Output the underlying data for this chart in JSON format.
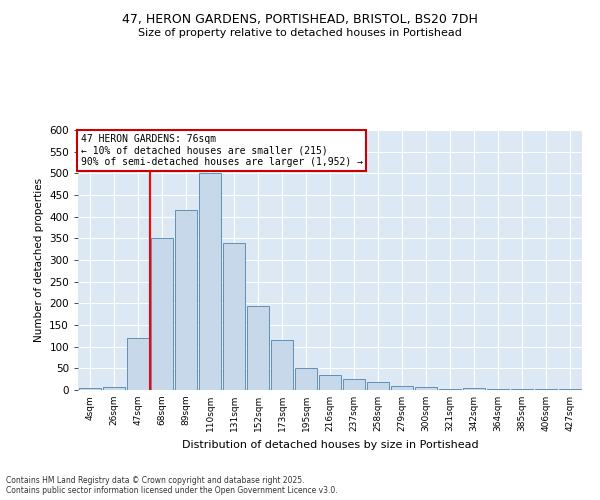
{
  "title_line1": "47, HERON GARDENS, PORTISHEAD, BRISTOL, BS20 7DH",
  "title_line2": "Size of property relative to detached houses in Portishead",
  "xlabel": "Distribution of detached houses by size in Portishead",
  "ylabel": "Number of detached properties",
  "categories": [
    "4sqm",
    "26sqm",
    "47sqm",
    "68sqm",
    "89sqm",
    "110sqm",
    "131sqm",
    "152sqm",
    "173sqm",
    "195sqm",
    "216sqm",
    "237sqm",
    "258sqm",
    "279sqm",
    "300sqm",
    "321sqm",
    "342sqm",
    "364sqm",
    "385sqm",
    "406sqm",
    "427sqm"
  ],
  "values": [
    5,
    8,
    120,
    350,
    415,
    500,
    340,
    195,
    115,
    50,
    35,
    25,
    18,
    10,
    8,
    3,
    5,
    3,
    3,
    3,
    3
  ],
  "bar_color": "#c8d8eb",
  "bar_edge_color": "#6090b8",
  "bg_color": "#dce8f4",
  "grid_color": "#ffffff",
  "red_line_x": 2.5,
  "ylim": [
    0,
    600
  ],
  "yticks": [
    0,
    50,
    100,
    150,
    200,
    250,
    300,
    350,
    400,
    450,
    500,
    550,
    600
  ],
  "annotation_box_text": "47 HERON GARDENS: 76sqm\n← 10% of detached houses are smaller (215)\n90% of semi-detached houses are larger (1,952) →",
  "annotation_box_color": "#ffffff",
  "annotation_box_edge_color": "#cc0000",
  "footer_text": "Contains HM Land Registry data © Crown copyright and database right 2025.\nContains public sector information licensed under the Open Government Licence v3.0.",
  "fig_bg_color": "#ffffff",
  "figsize": [
    6.0,
    5.0
  ],
  "dpi": 100
}
